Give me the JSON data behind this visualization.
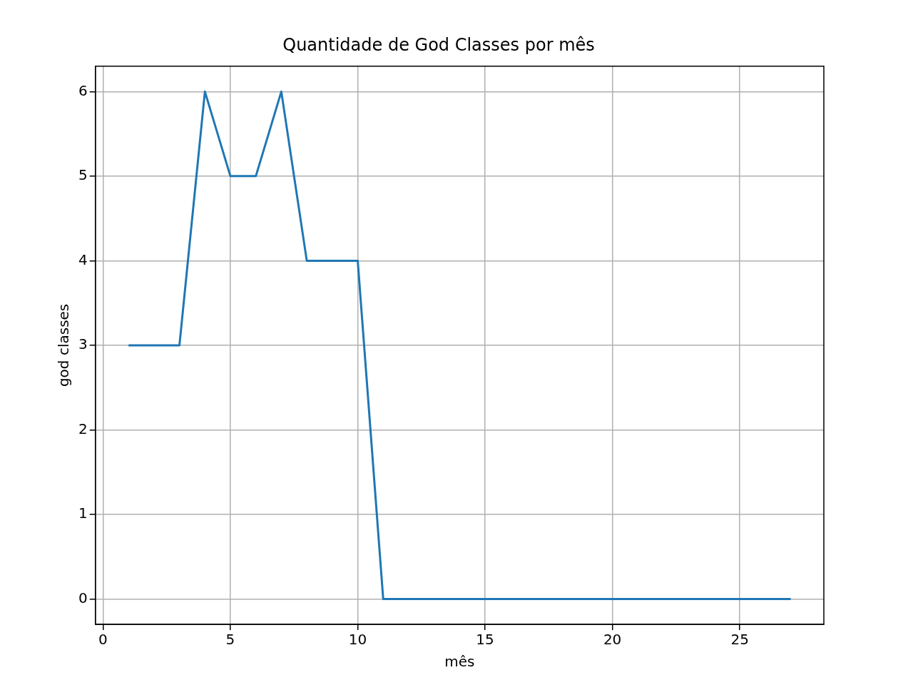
{
  "chart_data": {
    "type": "line",
    "title": "Quantidade de God Classes por mês",
    "xlabel": "mês",
    "ylabel": "god classes",
    "x": [
      1,
      2,
      3,
      4,
      5,
      6,
      7,
      8,
      9,
      10,
      11,
      12,
      13,
      14,
      15,
      16,
      17,
      18,
      19,
      20,
      21,
      22,
      23,
      24,
      25,
      26,
      27
    ],
    "series": [
      {
        "color": "#1f77b4",
        "values": [
          3,
          3,
          3,
          6,
          5,
          5,
          6,
          4,
          4,
          4,
          0,
          0,
          0,
          0,
          0,
          0,
          0,
          0,
          0,
          0,
          0,
          0,
          0,
          0,
          0,
          0,
          0
        ]
      }
    ],
    "xlim": [
      -0.3,
      28.3
    ],
    "ylim": [
      -0.3,
      6.3
    ],
    "xticks": [
      0,
      5,
      10,
      15,
      20,
      25
    ],
    "yticks": [
      0,
      1,
      2,
      3,
      4,
      5,
      6
    ],
    "grid": true
  }
}
